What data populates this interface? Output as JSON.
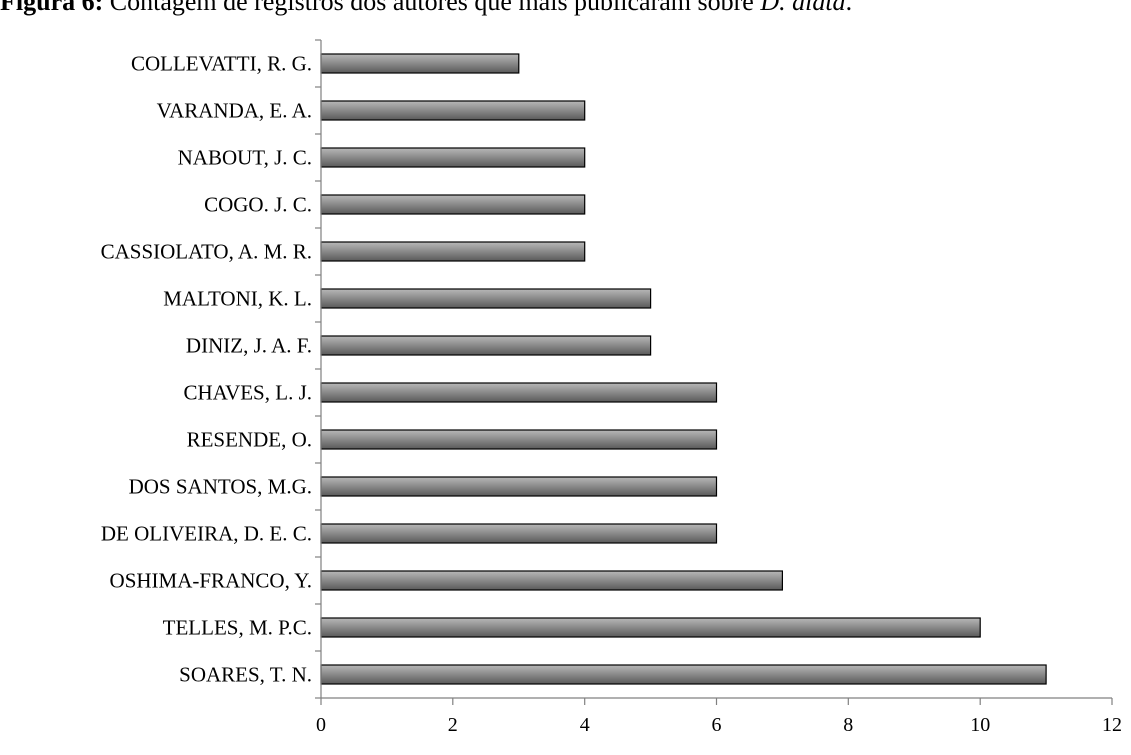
{
  "caption": {
    "bold": "Figura 6:",
    "text": " Contagem de registros dos autores que mais publicaram sobre ",
    "italic": "D. alata",
    "end": "."
  },
  "colors": {
    "bar_fill_light": "#b8b8b8",
    "bar_fill_dark": "#5a5a5a",
    "bar_stroke": "#000000",
    "axis": "#808080"
  },
  "chart_data": {
    "type": "bar",
    "orientation": "horizontal",
    "categories": [
      "COLLEVATTI, R. G.",
      "VARANDA, E. A.",
      "NABOUT, J. C.",
      "COGO. J. C.",
      "CASSIOLATO, A. M. R.",
      "MALTONI, K. L.",
      "DINIZ, J. A. F.",
      "CHAVES, L. J.",
      "RESENDE, O.",
      "DOS SANTOS, M.G.",
      "DE OLIVEIRA, D. E. C.",
      "OSHIMA-FRANCO, Y.",
      "TELLES, M. P.C.",
      "SOARES, T. N."
    ],
    "values": [
      3,
      4,
      4,
      4,
      4,
      5,
      5,
      6,
      6,
      6,
      6,
      7,
      10,
      11
    ],
    "xlim": [
      0,
      12
    ],
    "xticks": [
      "0",
      "2",
      "4",
      "6",
      "8",
      "10",
      "12"
    ],
    "grid": false,
    "legend": "none"
  }
}
